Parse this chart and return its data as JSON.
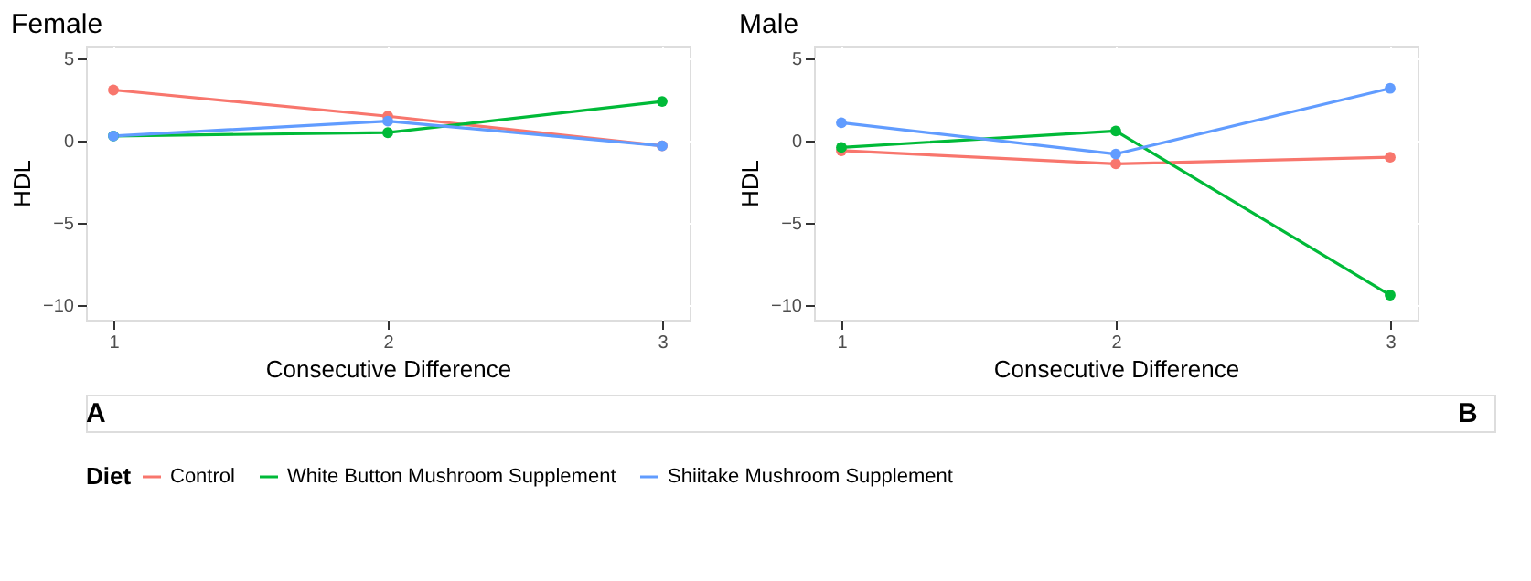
{
  "chart_data": [
    {
      "type": "line",
      "title": "Female",
      "xlabel": "Consecutive Difference",
      "ylabel": "HDL",
      "legend_title": "Diet",
      "x": [
        1,
        2,
        3
      ],
      "xlim": [
        0.9,
        3.1
      ],
      "xticks": [
        1,
        2,
        3
      ],
      "ylim": [
        -10.9,
        5.8
      ],
      "yticks": [
        -10,
        -5,
        0,
        5
      ],
      "grid": true,
      "marker": "circle",
      "legend": "bottom",
      "annotations": [
        "A"
      ],
      "series": [
        {
          "name": "Control",
          "color": "#f8766d",
          "values": [
            3.1,
            1.5,
            -0.3
          ]
        },
        {
          "name": "White Button Mushroom Supplement",
          "color": "#00ba38",
          "values": [
            0.3,
            0.5,
            2.4
          ]
        },
        {
          "name": "Shiitake Mushroom Supplement",
          "color": "#619cff",
          "values": [
            0.3,
            1.2,
            -0.3
          ]
        }
      ]
    },
    {
      "type": "line",
      "title": "Male",
      "xlabel": "Consecutive Difference",
      "ylabel": "HDL",
      "x": [
        1,
        2,
        3
      ],
      "xlim": [
        0.9,
        3.1
      ],
      "xticks": [
        1,
        2,
        3
      ],
      "ylim": [
        -10.9,
        5.8
      ],
      "yticks": [
        -10,
        -5,
        0,
        5
      ],
      "grid": true,
      "marker": "circle",
      "annotations": [
        "B"
      ],
      "series": [
        {
          "name": "Control",
          "color": "#f8766d",
          "values": [
            -0.6,
            -1.4,
            -1.0
          ]
        },
        {
          "name": "White Button Mushroom Supplement",
          "color": "#00ba38",
          "values": [
            -0.4,
            0.6,
            -9.4
          ]
        },
        {
          "name": "Shiitake Mushroom Supplement",
          "color": "#619cff",
          "values": [
            1.1,
            -0.8,
            3.2
          ]
        }
      ]
    }
  ]
}
